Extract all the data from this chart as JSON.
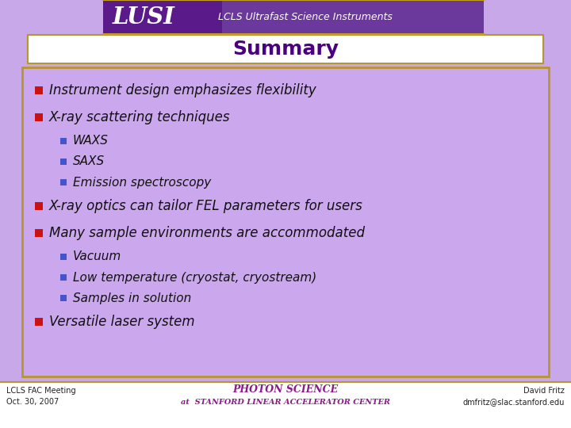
{
  "title": "Summary",
  "title_color": "#4B0082",
  "slide_bg": "#C8A8E8",
  "content_bg": "#CBA8ED",
  "content_border": "#B8962E",
  "header_bg": "#5B1F8A",
  "header_bg_light": "#7B3FA0",
  "lusi_text": "LUSI",
  "lusi_subtitle": "LCLS Ultrafast Science Instruments",
  "bullet_color_main": "#CC1111",
  "bullet_color_sub": "#4455CC",
  "bullet_items": [
    {
      "level": 0,
      "text": "Instrument design emphasizes flexibility"
    },
    {
      "level": 0,
      "text": "X-ray scattering techniques"
    },
    {
      "level": 1,
      "text": "WAXS"
    },
    {
      "level": 1,
      "text": "SAXS"
    },
    {
      "level": 1,
      "text": "Emission spectroscopy"
    },
    {
      "level": 0,
      "text": "X-ray optics can tailor FEL parameters for users"
    },
    {
      "level": 0,
      "text": "Many sample environments are accommodated"
    },
    {
      "level": 1,
      "text": "Vacuum"
    },
    {
      "level": 1,
      "text": "Low temperature (cryostat, cryostream)"
    },
    {
      "level": 1,
      "text": "Samples in solution"
    },
    {
      "level": 0,
      "text": "Versatile laser system"
    }
  ],
  "footer_left1": "LCLS FAC Meeting",
  "footer_left2": "Oct. 30, 2007",
  "footer_right1": "David Fritz",
  "footer_right2": "dmfritz@slac.stanford.edu",
  "footer_center": "PHOTON SCIENCE",
  "footer_center2": "at  STANFORD LINEAR ACCELERATOR CENTER"
}
